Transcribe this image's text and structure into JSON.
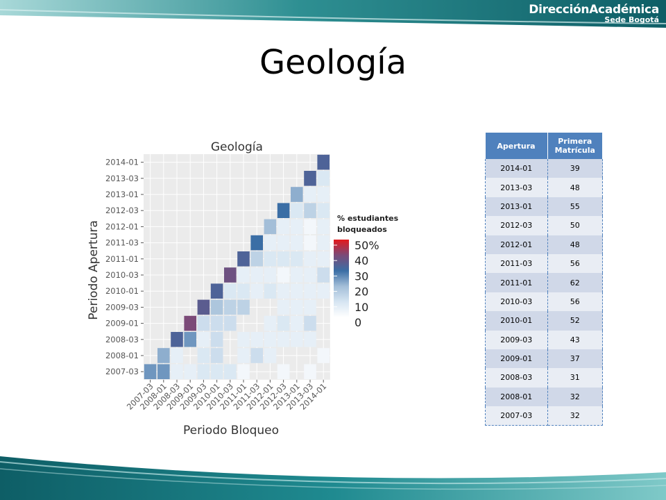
{
  "slide": {
    "title": "Geología",
    "logo_line1": "DirecciónAcadémica",
    "logo_line2": "Sede Bogotá"
  },
  "table": {
    "headers": [
      "Apertura",
      "Primera Matrícula"
    ],
    "rows": [
      [
        "2014-01",
        "39"
      ],
      [
        "2013-03",
        "48"
      ],
      [
        "2013-01",
        "55"
      ],
      [
        "2012-03",
        "50"
      ],
      [
        "2012-01",
        "48"
      ],
      [
        "2011-03",
        "56"
      ],
      [
        "2011-01",
        "62"
      ],
      [
        "2010-03",
        "56"
      ],
      [
        "2010-01",
        "52"
      ],
      [
        "2009-03",
        "43"
      ],
      [
        "2009-01",
        "37"
      ],
      [
        "2008-03",
        "31"
      ],
      [
        "2008-01",
        "32"
      ],
      [
        "2007-03",
        "32"
      ]
    ]
  },
  "colors": {
    "header_blue": "#4f81bd",
    "band_teal": "#1b7f86",
    "scale_high": "#e41a1c",
    "scale_mid": "#7b4a78",
    "scale_low": "#3b6ea5"
  },
  "chart_data": {
    "type": "heatmap",
    "title": "Geología",
    "xlabel": "Periodo Bloqueo",
    "ylabel": "Periodo Apertura",
    "periods": [
      "2007-03",
      "2008-01",
      "2008-03",
      "2009-01",
      "2009-03",
      "2010-01",
      "2010-03",
      "2011-01",
      "2011-03",
      "2012-01",
      "2012-03",
      "2013-01",
      "2013-03",
      "2014-01"
    ],
    "legend_title": "% estudiantes bloqueados",
    "legend_labels": [
      "50%",
      "40",
      "30",
      "20",
      "10",
      "0"
    ],
    "legend_placement": "right",
    "value_range": [
      0,
      50
    ],
    "cells": [
      [
        "2007-03",
        "2007-03",
        25
      ],
      [
        "2008-01",
        "2007-03",
        25
      ],
      [
        "2008-03",
        "2007-03",
        6
      ],
      [
        "2009-01",
        "2007-03",
        6
      ],
      [
        "2009-03",
        "2007-03",
        9
      ],
      [
        "2010-01",
        "2007-03",
        9
      ],
      [
        "2010-03",
        "2007-03",
        9
      ],
      [
        "2011-01",
        "2007-03",
        3
      ],
      [
        "2012-03",
        "2007-03",
        3
      ],
      [
        "2013-03",
        "2007-03",
        3
      ],
      [
        "2008-01",
        "2008-01",
        22
      ],
      [
        "2008-03",
        "2008-01",
        6
      ],
      [
        "2009-03",
        "2008-01",
        9
      ],
      [
        "2010-01",
        "2008-01",
        12
      ],
      [
        "2011-01",
        "2008-01",
        6
      ],
      [
        "2011-03",
        "2008-01",
        12
      ],
      [
        "2012-01",
        "2008-01",
        6
      ],
      [
        "2014-01",
        "2008-01",
        3
      ],
      [
        "2008-03",
        "2008-03",
        33
      ],
      [
        "2009-01",
        "2008-03",
        25
      ],
      [
        "2009-03",
        "2008-03",
        6
      ],
      [
        "2010-01",
        "2008-03",
        12
      ],
      [
        "2011-01",
        "2008-03",
        6
      ],
      [
        "2011-03",
        "2008-03",
        6
      ],
      [
        "2012-01",
        "2008-03",
        6
      ],
      [
        "2012-03",
        "2008-03",
        6
      ],
      [
        "2013-01",
        "2008-03",
        6
      ],
      [
        "2013-03",
        "2008-03",
        6
      ],
      [
        "2009-01",
        "2009-01",
        40
      ],
      [
        "2009-03",
        "2009-01",
        12
      ],
      [
        "2010-01",
        "2009-01",
        12
      ],
      [
        "2010-03",
        "2009-01",
        12
      ],
      [
        "2012-01",
        "2009-01",
        6
      ],
      [
        "2012-03",
        "2009-01",
        9
      ],
      [
        "2013-01",
        "2009-01",
        6
      ],
      [
        "2013-03",
        "2009-01",
        12
      ],
      [
        "2009-03",
        "2009-03",
        35
      ],
      [
        "2010-01",
        "2009-03",
        18
      ],
      [
        "2010-03",
        "2009-03",
        15
      ],
      [
        "2011-01",
        "2009-03",
        15
      ],
      [
        "2012-03",
        "2009-03",
        6
      ],
      [
        "2013-01",
        "2009-03",
        6
      ],
      [
        "2013-03",
        "2009-03",
        6
      ],
      [
        "2010-01",
        "2010-01",
        33
      ],
      [
        "2010-03",
        "2010-01",
        9
      ],
      [
        "2011-01",
        "2010-01",
        9
      ],
      [
        "2011-03",
        "2010-01",
        6
      ],
      [
        "2012-01",
        "2010-01",
        9
      ],
      [
        "2012-03",
        "2010-01",
        6
      ],
      [
        "2013-01",
        "2010-01",
        6
      ],
      [
        "2013-03",
        "2010-01",
        6
      ],
      [
        "2014-01",
        "2010-01",
        6
      ],
      [
        "2010-03",
        "2010-03",
        38
      ],
      [
        "2011-01",
        "2010-03",
        6
      ],
      [
        "2011-03",
        "2010-03",
        6
      ],
      [
        "2012-01",
        "2010-03",
        6
      ],
      [
        "2012-03",
        "2010-03",
        3
      ],
      [
        "2013-01",
        "2010-03",
        6
      ],
      [
        "2013-03",
        "2010-03",
        6
      ],
      [
        "2014-01",
        "2010-03",
        12
      ],
      [
        "2011-01",
        "2011-01",
        33
      ],
      [
        "2011-03",
        "2011-01",
        15
      ],
      [
        "2012-01",
        "2011-01",
        9
      ],
      [
        "2012-03",
        "2011-01",
        9
      ],
      [
        "2013-01",
        "2011-01",
        9
      ],
      [
        "2013-03",
        "2011-01",
        6
      ],
      [
        "2014-01",
        "2011-01",
        6
      ],
      [
        "2011-03",
        "2011-03",
        30
      ],
      [
        "2012-01",
        "2011-03",
        6
      ],
      [
        "2012-03",
        "2011-03",
        6
      ],
      [
        "2013-01",
        "2011-03",
        6
      ],
      [
        "2013-03",
        "2011-03",
        3
      ],
      [
        "2014-01",
        "2011-03",
        6
      ],
      [
        "2012-01",
        "2012-01",
        20
      ],
      [
        "2012-03",
        "2012-01",
        6
      ],
      [
        "2013-01",
        "2012-01",
        6
      ],
      [
        "2013-03",
        "2012-01",
        3
      ],
      [
        "2014-01",
        "2012-01",
        6
      ],
      [
        "2012-03",
        "2012-03",
        30
      ],
      [
        "2013-01",
        "2012-03",
        9
      ],
      [
        "2013-03",
        "2012-03",
        15
      ],
      [
        "2014-01",
        "2012-03",
        9
      ],
      [
        "2013-01",
        "2013-01",
        22
      ],
      [
        "2013-03",
        "2013-01",
        6
      ],
      [
        "2014-01",
        "2013-01",
        6
      ],
      [
        "2013-03",
        "2013-03",
        33
      ],
      [
        "2014-01",
        "2013-03",
        9
      ],
      [
        "2014-01",
        "2014-01",
        33
      ]
    ]
  }
}
